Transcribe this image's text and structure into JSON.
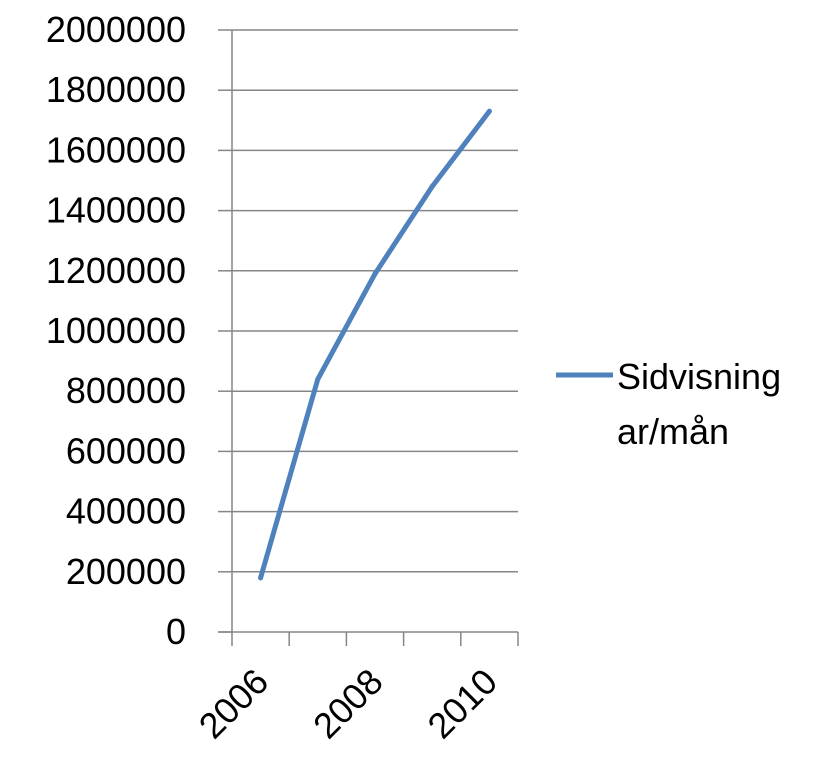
{
  "chart_data": {
    "type": "line",
    "title": "",
    "xlabel": "",
    "ylabel": "",
    "x": [
      2006,
      2007,
      2008,
      2009,
      2010
    ],
    "x_tick_labels": [
      "2006",
      "2008",
      "2010"
    ],
    "ylim": [
      0,
      2000000
    ],
    "y_tick_labels": [
      "0",
      "200000",
      "400000",
      "600000",
      "800000",
      "1000000",
      "1200000",
      "1400000",
      "1600000",
      "1800000",
      "2000000"
    ],
    "grid": "horizontal",
    "legend": "right",
    "series": [
      {
        "name": "Sidvisningar/mån",
        "name_lines": [
          "Sidvisning",
          "ar/mån"
        ],
        "color": "#4f81bd",
        "values": [
          180000,
          840000,
          1190000,
          1480000,
          1730000
        ]
      }
    ]
  }
}
